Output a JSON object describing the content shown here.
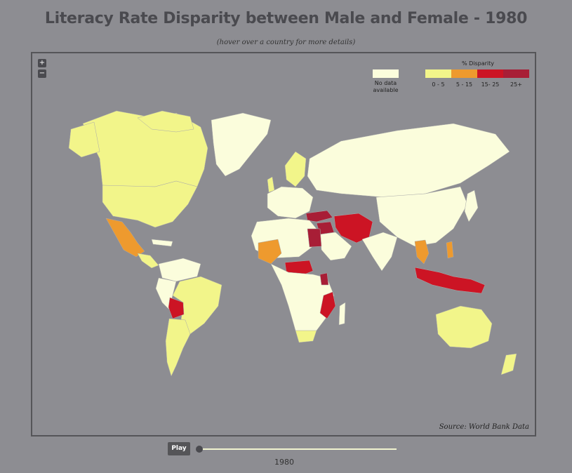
{
  "title": "Literacy Rate Disparity between Male and Female - 1980",
  "subtitle": "(hover over a country for more details)",
  "zoom": {
    "in_label": "+",
    "out_label": "−"
  },
  "legend": {
    "title": "% Disparity",
    "no_data_label": "No data available",
    "no_data_color": "#fbfddc",
    "bins": [
      {
        "label": "0 - 5",
        "color": "#f2f58a"
      },
      {
        "label": "5 - 15",
        "color": "#ee9a2e"
      },
      {
        "label": "15- 25",
        "color": "#cc1424"
      },
      {
        "label": "25+",
        "color": "#a81e36"
      }
    ]
  },
  "source": "Source: World Bank Data",
  "controls": {
    "play_label": "Play",
    "year": "1980"
  },
  "colors": {
    "background": "#8d8d92",
    "ocean": "#8d8d92",
    "border": "#555558"
  }
}
